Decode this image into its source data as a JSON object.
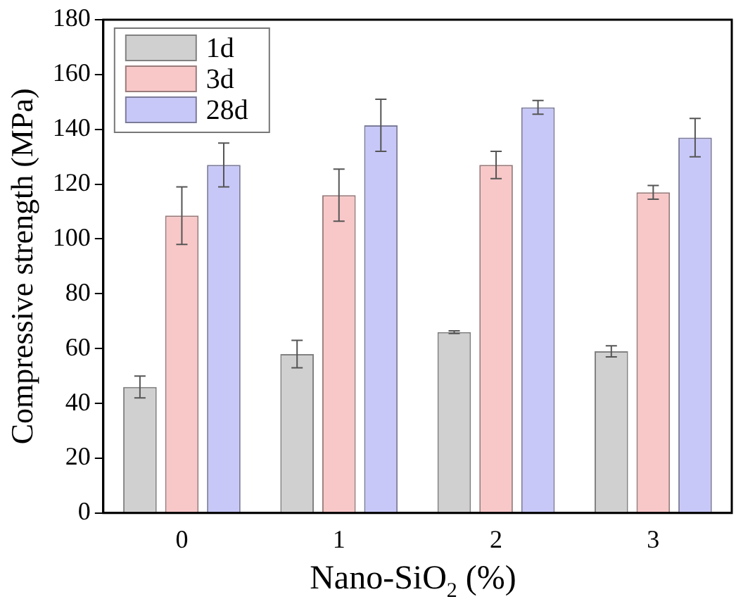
{
  "chart_data": {
    "type": "bar",
    "xlabel": "Nano-SiO$_{2}$ (%)",
    "ylabel": "Compressive strength (MPa)",
    "categories": [
      "0",
      "1",
      "2",
      "3"
    ],
    "series": [
      {
        "name": "1d",
        "color": "#d0d0d0",
        "values": [
          46,
          58,
          66,
          59
        ],
        "errors": [
          4,
          5,
          0.5,
          2
        ]
      },
      {
        "name": "3d",
        "color": "#f8c8c8",
        "values": [
          108.5,
          116,
          127,
          117
        ],
        "errors": [
          10.5,
          9.5,
          5,
          2.5
        ]
      },
      {
        "name": "28d",
        "color": "#c8c8f8",
        "values": [
          127,
          141.5,
          148,
          137
        ],
        "errors": [
          8,
          9.5,
          2.5,
          7
        ]
      }
    ],
    "ylim": [
      0,
      180
    ],
    "yticks": [
      0,
      20,
      40,
      60,
      80,
      100,
      120,
      140,
      160,
      180
    ],
    "grid": false,
    "legend": "top left"
  }
}
